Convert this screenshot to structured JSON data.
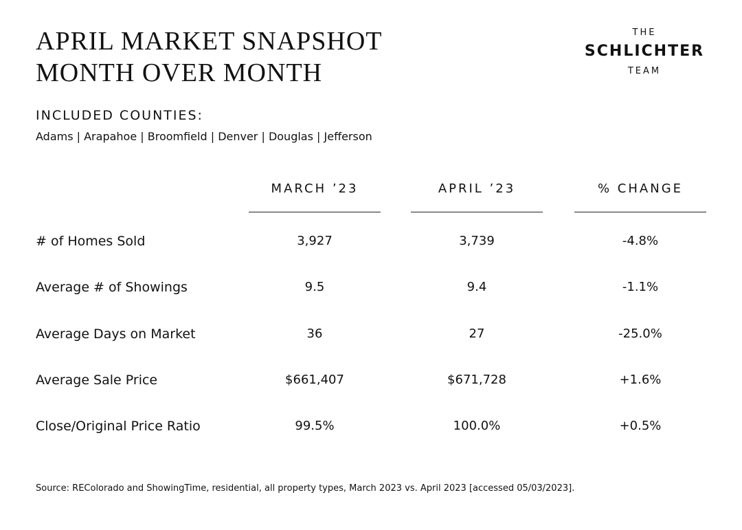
{
  "header": {
    "title": [
      "APRIL MARKET SNAPSHOT",
      "MONTH OVER MONTH"
    ],
    "logo": [
      "THE",
      "SCHLICHTER",
      "TEAM"
    ]
  },
  "counties": {
    "heading": "INCLUDED COUNTIES:",
    "list": "Adams | Arapahoe | Broomfield | Denver | Douglas | Jefferson"
  },
  "table": {
    "columns": [
      "MARCH ’23",
      "APRIL ’23",
      "% CHANGE"
    ],
    "rows": [
      [
        "# of Homes Sold",
        "3,927",
        "3,739",
        "-4.8%"
      ],
      [
        "Average # of Showings",
        "9.5",
        "9.4",
        "-1.1%"
      ],
      [
        "Average Days on Market",
        "36",
        "27",
        "-25.0%"
      ],
      [
        "Average Sale Price",
        "$661,407",
        "$671,728",
        "+1.6%"
      ],
      [
        "Close/Original Price Ratio",
        "99.5%",
        "100.0%",
        "+0.5%"
      ]
    ]
  },
  "footer": {
    "source": "Source: REColorado and ShowingTime, residential, all property types, March 2023 vs. April 2023 [accessed 05/03/2023]."
  }
}
